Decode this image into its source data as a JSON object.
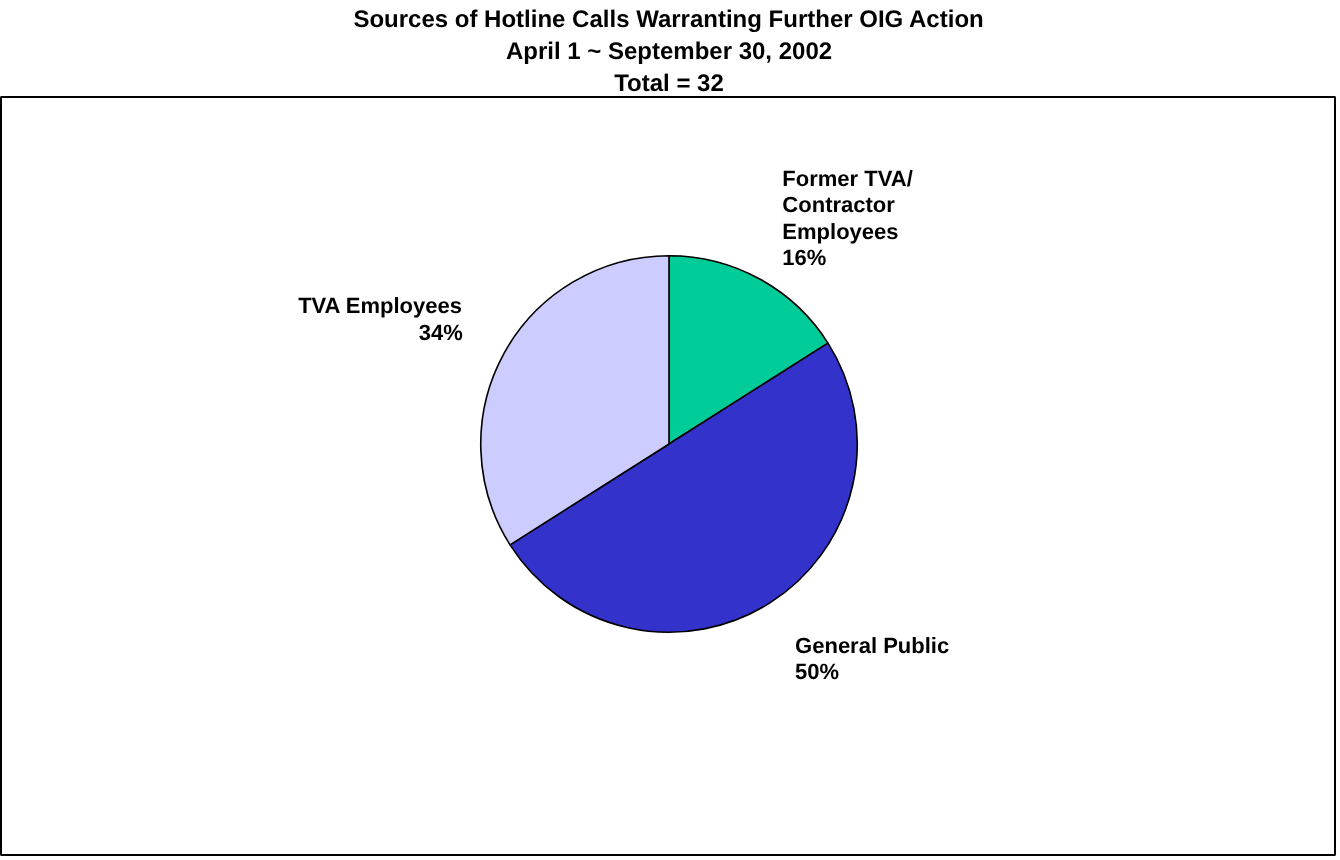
{
  "chart_data": {
    "type": "pie",
    "title": "Sources of Hotline Calls Warranting Further OIG Action",
    "subtitle": "April 1 ~ September 30, 2002",
    "annotations": [
      "Total = 32"
    ],
    "categories": [
      "Former TVA/ Contractor Employees",
      "General Public",
      "TVA Employees"
    ],
    "values": [
      16,
      50,
      34
    ],
    "value_labels": [
      "16%",
      "50%",
      "34%"
    ],
    "colors": [
      "#00cc99",
      "#3333cc",
      "#ccccff"
    ]
  }
}
